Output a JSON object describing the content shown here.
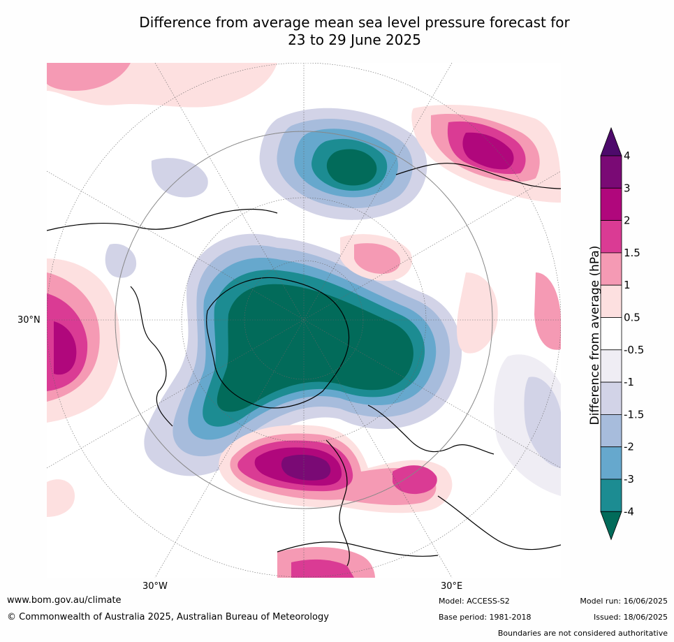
{
  "title_line1": "Difference from average mean sea level pressure forecast for",
  "title_line2": "23 to 29 June 2025",
  "labels": {
    "lat_30n": "30°N",
    "lon_30w": "30°W",
    "lon_30e": "30°E"
  },
  "colorbar": {
    "title": "Difference from average (hPa)",
    "levels": [
      "4",
      "3",
      "2",
      "1.5",
      "1",
      "0.5",
      "-0.5",
      "-1",
      "-1.5",
      "-2",
      "-3",
      "-4"
    ],
    "colors": {
      "extend_high": "#4d0a6b",
      "c3_4": "#7a0a75",
      "c2_3": "#b0077c",
      "c15_2": "#da3b94",
      "c1_15": "#f59ab4",
      "c05_1": "#fde0e0",
      "c_neutral": "#ffffff",
      "cm05_m1": "#efedf4",
      "cm1_m15": "#d2d3e7",
      "cm15_m2": "#a7bcdc",
      "cm2_m3": "#66a8cd",
      "cm3_m4": "#1c8c92",
      "extend_low": "#026b5a"
    }
  },
  "footer": {
    "website": "www.bom.gov.au/climate",
    "copyright": "© Commonwealth of Australia 2025, Australian Bureau of Meteorology",
    "model": "Model: ACCESS-S2",
    "base_period": "Base period: 1981-2018",
    "model_run": "Model run: 16/06/2025",
    "issued": "Issued: 18/06/2025",
    "disclaimer": "Boundaries are not considered authoritative"
  }
}
